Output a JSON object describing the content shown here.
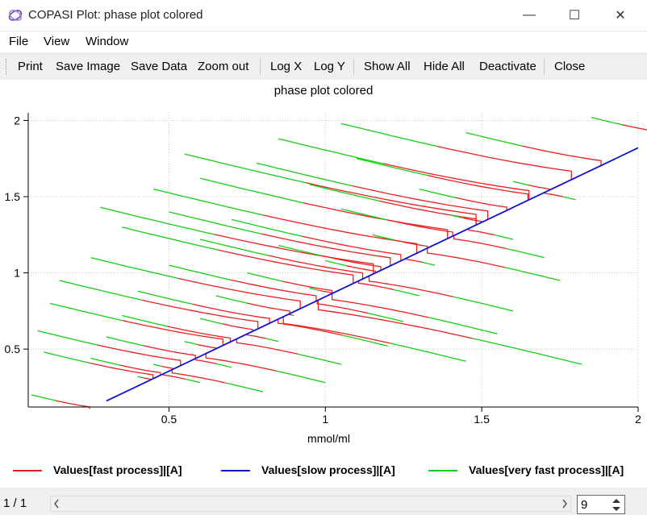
{
  "window": {
    "title": "COPASI Plot: phase plot colored",
    "minimize_glyph": "—",
    "maximize_glyph": "☐",
    "close_glyph": "✕"
  },
  "menu": {
    "file": "File",
    "view": "View",
    "window": "Window"
  },
  "toolbar": {
    "print": "Print",
    "save_image": "Save Image",
    "save_data": "Save Data",
    "zoom_out": "Zoom out",
    "log_x": "Log X",
    "log_y": "Log Y",
    "show_all": "Show All",
    "hide_all": "Hide All",
    "deactivate": "Deactivate",
    "close": "Close"
  },
  "status": {
    "page": "1 / 1",
    "spin_value": "9"
  },
  "colors": {
    "fast": "#e82020",
    "slow": "#1010d0",
    "very_fast": "#10d010"
  },
  "chart_data": {
    "type": "line",
    "title": "phase plot colored",
    "xlabel": "mmol/ml",
    "ylabel": "",
    "xlim": [
      0.05,
      2.0
    ],
    "ylim": [
      0.12,
      2.05
    ],
    "xticks": [
      0.5,
      1,
      1.5,
      2
    ],
    "yticks": [
      0.5,
      1,
      1.5,
      2
    ],
    "tick_labels_x": [
      "0.5",
      "1",
      "1.5",
      "2"
    ],
    "tick_labels_y": [
      "0.5",
      "1",
      "1.5",
      "2"
    ],
    "grid": true,
    "legend_position": "bottom",
    "series": [
      {
        "name": "Values[fast  process]|[A]",
        "key": "fast"
      },
      {
        "name": "Values[slow process]|[A]",
        "key": "slow"
      },
      {
        "name": "Values[very fast process]|[A]",
        "key": "very_fast"
      }
    ],
    "slow_manifold": {
      "x": [
        0.3,
        2.0
      ],
      "y": [
        0.16,
        1.82
      ]
    },
    "trajectory_starts": [
      [
        0.85,
        1.88
      ],
      [
        1.05,
        1.98
      ],
      [
        1.45,
        1.92
      ],
      [
        1.85,
        2.02
      ],
      [
        0.55,
        1.78
      ],
      [
        0.78,
        1.72
      ],
      [
        1.1,
        1.75
      ],
      [
        0.45,
        1.55
      ],
      [
        0.6,
        1.62
      ],
      [
        0.95,
        1.58
      ],
      [
        1.3,
        1.55
      ],
      [
        1.6,
        1.6
      ],
      [
        0.28,
        1.43
      ],
      [
        0.5,
        1.4
      ],
      [
        0.7,
        1.35
      ],
      [
        1.05,
        1.42
      ],
      [
        1.4,
        1.38
      ],
      [
        1.8,
        1.48
      ],
      [
        0.35,
        1.3
      ],
      [
        0.6,
        1.22
      ],
      [
        0.85,
        1.18
      ],
      [
        1.15,
        1.25
      ],
      [
        1.6,
        1.22
      ],
      [
        0.25,
        1.1
      ],
      [
        0.5,
        1.05
      ],
      [
        0.75,
        1.0
      ],
      [
        1.0,
        1.08
      ],
      [
        1.35,
        1.05
      ],
      [
        1.7,
        1.1
      ],
      [
        0.15,
        0.95
      ],
      [
        0.4,
        0.88
      ],
      [
        0.65,
        0.85
      ],
      [
        0.95,
        0.9
      ],
      [
        1.3,
        0.85
      ],
      [
        1.75,
        0.95
      ],
      [
        0.12,
        0.8
      ],
      [
        0.35,
        0.72
      ],
      [
        0.6,
        0.7
      ],
      [
        0.9,
        0.72
      ],
      [
        1.25,
        0.68
      ],
      [
        1.6,
        0.75
      ],
      [
        0.08,
        0.62
      ],
      [
        0.3,
        0.58
      ],
      [
        0.55,
        0.55
      ],
      [
        0.85,
        0.55
      ],
      [
        1.2,
        0.52
      ],
      [
        1.55,
        0.6
      ],
      [
        0.1,
        0.48
      ],
      [
        0.25,
        0.44
      ],
      [
        0.45,
        0.4
      ],
      [
        0.7,
        0.38
      ],
      [
        1.05,
        0.4
      ],
      [
        1.45,
        0.42
      ],
      [
        1.82,
        0.4
      ],
      [
        0.06,
        0.2
      ],
      [
        0.4,
        0.32
      ],
      [
        0.6,
        0.28
      ],
      [
        0.8,
        0.22
      ],
      [
        1.0,
        0.28
      ]
    ]
  },
  "icons": {
    "app": "copasi-logo-icon",
    "spin_up": "chevron-up-icon",
    "spin_down": "chevron-down-icon"
  }
}
